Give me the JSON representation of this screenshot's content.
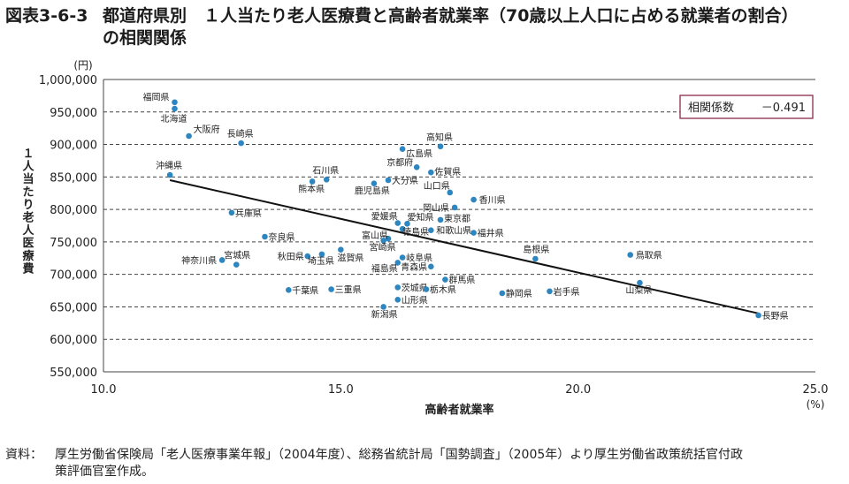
{
  "header": {
    "figure_no": "図表3-6-3",
    "title_line1": "都道府県別　１人当たり老人医療費と高齢者就業率（70歳以上人口に占める就業者の割合）",
    "title_line2": "の相関関係"
  },
  "chart_data": {
    "type": "scatter",
    "xlabel": "高齢者就業率",
    "ylabel": "１人当たり老人医療費",
    "x_unit": "(%)",
    "y_unit": "(円)",
    "xlim": [
      10.0,
      25.0
    ],
    "ylim": [
      550000,
      1000000
    ],
    "x_ticks": [
      "10.0",
      "15.0",
      "20.0",
      "25.0"
    ],
    "y_ticks": [
      "550,000",
      "600,000",
      "650,000",
      "700,000",
      "750,000",
      "800,000",
      "850,000",
      "900,000",
      "950,000",
      "1,000,000"
    ],
    "grid": "horizontal dashed",
    "correlation_label": "相関係数",
    "correlation_value": "－0.491",
    "point_color": "#2e86c1",
    "trendline": {
      "x": [
        11.4,
        23.8
      ],
      "y": [
        845000,
        640000
      ]
    },
    "points": [
      {
        "label": "福岡県",
        "x": 11.5,
        "y": 965000
      },
      {
        "label": "北海道",
        "x": 11.5,
        "y": 955000
      },
      {
        "label": "大阪府",
        "x": 11.8,
        "y": 913000
      },
      {
        "label": "長崎県",
        "x": 12.9,
        "y": 902000
      },
      {
        "label": "沖縄県",
        "x": 11.4,
        "y": 853000
      },
      {
        "label": "兵庫県",
        "x": 12.7,
        "y": 795000
      },
      {
        "label": "石川県",
        "x": 14.7,
        "y": 846000
      },
      {
        "label": "熊本県",
        "x": 14.4,
        "y": 843000
      },
      {
        "label": "鹿児島県",
        "x": 15.7,
        "y": 840000
      },
      {
        "label": "大分県",
        "x": 16.0,
        "y": 845000
      },
      {
        "label": "京都府",
        "x": 16.6,
        "y": 865000
      },
      {
        "label": "佐賀県",
        "x": 16.9,
        "y": 857000
      },
      {
        "label": "広島県",
        "x": 16.3,
        "y": 893000
      },
      {
        "label": "高知県",
        "x": 17.1,
        "y": 897000
      },
      {
        "label": "山口県",
        "x": 17.3,
        "y": 826000
      },
      {
        "label": "香川県",
        "x": 17.8,
        "y": 815000
      },
      {
        "label": "岡山県",
        "x": 17.4,
        "y": 803000
      },
      {
        "label": "愛媛県",
        "x": 16.2,
        "y": 779000
      },
      {
        "label": "愛知県",
        "x": 16.4,
        "y": 778000
      },
      {
        "label": "東京都",
        "x": 17.1,
        "y": 784000
      },
      {
        "label": "徳島県",
        "x": 16.3,
        "y": 770000
      },
      {
        "label": "和歌山県",
        "x": 16.9,
        "y": 768000
      },
      {
        "label": "福井県",
        "x": 17.8,
        "y": 764000
      },
      {
        "label": "奈良県",
        "x": 13.4,
        "y": 758000
      },
      {
        "label": "富山県",
        "x": 16.0,
        "y": 755000
      },
      {
        "label": "宮崎県",
        "x": 15.9,
        "y": 752000
      },
      {
        "label": "秋田県",
        "x": 14.3,
        "y": 728000
      },
      {
        "label": "埼玉県",
        "x": 14.6,
        "y": 731000
      },
      {
        "label": "滋賀県",
        "x": 15.0,
        "y": 738000
      },
      {
        "label": "岐阜県",
        "x": 16.3,
        "y": 726000
      },
      {
        "label": "福島県",
        "x": 16.2,
        "y": 718000
      },
      {
        "label": "青森県",
        "x": 16.9,
        "y": 712000
      },
      {
        "label": "神奈川県",
        "x": 12.5,
        "y": 722000
      },
      {
        "label": "宮城県",
        "x": 12.8,
        "y": 715000
      },
      {
        "label": "島根県",
        "x": 19.1,
        "y": 724000
      },
      {
        "label": "鳥取県",
        "x": 21.1,
        "y": 730000
      },
      {
        "label": "群馬県",
        "x": 17.2,
        "y": 692000
      },
      {
        "label": "茨城県",
        "x": 16.2,
        "y": 680000
      },
      {
        "label": "栃木県",
        "x": 16.8,
        "y": 677000
      },
      {
        "label": "千葉県",
        "x": 13.9,
        "y": 676000
      },
      {
        "label": "三重県",
        "x": 14.8,
        "y": 677000
      },
      {
        "label": "静岡県",
        "x": 18.4,
        "y": 671000
      },
      {
        "label": "岩手県",
        "x": 19.4,
        "y": 674000
      },
      {
        "label": "山梨県",
        "x": 21.3,
        "y": 687000
      },
      {
        "label": "山形県",
        "x": 16.2,
        "y": 661000
      },
      {
        "label": "新潟県",
        "x": 15.9,
        "y": 650000
      },
      {
        "label": "長野県",
        "x": 23.8,
        "y": 637000
      }
    ]
  },
  "note": {
    "label": "資料：",
    "text_line1": "厚生労働省保険局「老人医療事業年報」（2004年度）、総務省統計局「国勢調査」（2005年）より厚生労働省政策統括官付政",
    "text_line2": "策評価官室作成。"
  }
}
